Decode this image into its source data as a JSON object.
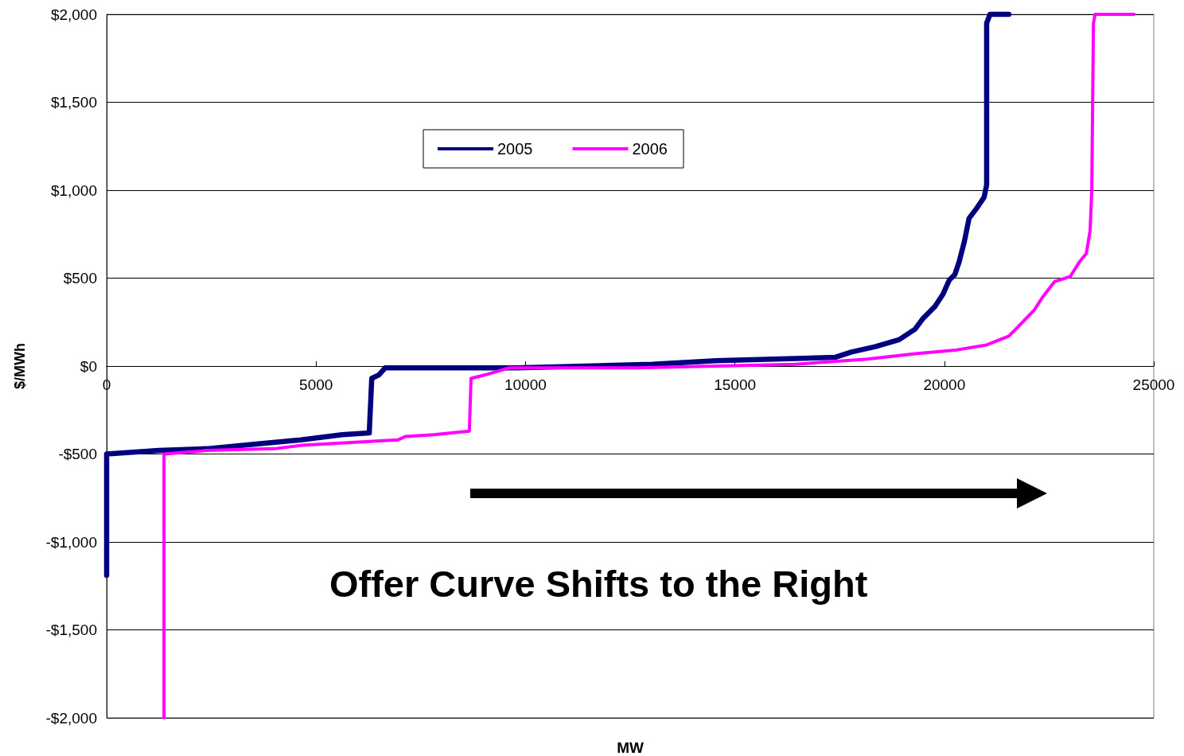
{
  "chart_data": {
    "type": "line",
    "xlabel": "MW",
    "ylabel": "$/MWh",
    "annotations": [
      "Offer Curve Shifts to the Right"
    ],
    "xlim": [
      0,
      25000
    ],
    "xticks": [
      0,
      5000,
      10000,
      15000,
      20000,
      25000
    ],
    "ylim": [
      -2000,
      2000
    ],
    "yticks": [
      {
        "value": -2000,
        "label": "-$2,000"
      },
      {
        "value": -1500,
        "label": "-$1,500"
      },
      {
        "value": -1000,
        "label": "-$1,000"
      },
      {
        "value": -500,
        "label": "-$500"
      },
      {
        "value": 0,
        "label": "$0"
      },
      {
        "value": 500,
        "label": "$500"
      },
      {
        "value": 1000,
        "label": "$1,000"
      },
      {
        "value": 1500,
        "label": "$1,500"
      },
      {
        "value": 2000,
        "label": "$2,000"
      }
    ],
    "grid": "y",
    "legend": "top",
    "marker": "none",
    "line_style": "solid",
    "series": [
      {
        "name": "2005",
        "color": "#000080",
        "x": [
          0,
          0,
          1250,
          2390,
          3720,
          4640,
          5620,
          6270,
          6330,
          6500,
          6650,
          9800,
          13030,
          14550,
          17400,
          17780,
          18350,
          18920,
          19300,
          19490,
          19780,
          19970,
          20120,
          20250,
          20350,
          20480,
          20590,
          20780,
          20950,
          21010,
          21010,
          21090,
          21540
        ],
        "values": [
          -1190,
          -500,
          -480,
          -470,
          -440,
          -420,
          -390,
          -380,
          -70,
          -50,
          -10,
          -10,
          10,
          30,
          50,
          80,
          110,
          150,
          210,
          270,
          340,
          410,
          490,
          520,
          590,
          710,
          840,
          900,
          960,
          1030,
          1950,
          2000,
          2000
        ]
      },
      {
        "name": "2006",
        "color": "#ff00ff",
        "x": [
          1370,
          1370,
          2390,
          4010,
          4670,
          6950,
          7140,
          7810,
          8660,
          8700,
          9040,
          9610,
          12650,
          16450,
          18160,
          19300,
          20250,
          21010,
          21540,
          21870,
          22150,
          22340,
          22630,
          23010,
          23220,
          23390,
          23480,
          23520,
          23560,
          23600,
          24530
        ],
        "values": [
          -2000,
          -500,
          -480,
          -470,
          -450,
          -420,
          -400,
          -390,
          -370,
          -70,
          -50,
          -10,
          -10,
          10,
          40,
          70,
          90,
          120,
          170,
          250,
          320,
          390,
          480,
          510,
          590,
          640,
          770,
          1000,
          1950,
          2000,
          2000
        ]
      }
    ]
  }
}
